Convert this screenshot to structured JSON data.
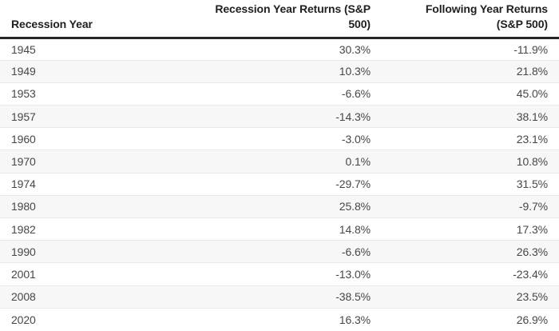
{
  "table": {
    "header": {
      "col_year": "Recession Year",
      "col_recession_line1": "Recession Year Returns (S&P",
      "col_recession_line2": "500)",
      "col_following_line1": "Following Year Returns",
      "col_following_line2": "(S&P 500)"
    },
    "rows": [
      {
        "year": "1945",
        "recession_year_return": "30.3%",
        "following_year_return": "-11.9%"
      },
      {
        "year": "1949",
        "recession_year_return": "10.3%",
        "following_year_return": "21.8%"
      },
      {
        "year": "1953",
        "recession_year_return": "-6.6%",
        "following_year_return": "45.0%"
      },
      {
        "year": "1957",
        "recession_year_return": "-14.3%",
        "following_year_return": "38.1%"
      },
      {
        "year": "1960",
        "recession_year_return": "-3.0%",
        "following_year_return": "23.1%"
      },
      {
        "year": "1970",
        "recession_year_return": "0.1%",
        "following_year_return": "10.8%"
      },
      {
        "year": "1974",
        "recession_year_return": "-29.7%",
        "following_year_return": "31.5%"
      },
      {
        "year": "1980",
        "recession_year_return": "25.8%",
        "following_year_return": "-9.7%"
      },
      {
        "year": "1982",
        "recession_year_return": "14.8%",
        "following_year_return": "17.3%"
      },
      {
        "year": "1990",
        "recession_year_return": "-6.6%",
        "following_year_return": "26.3%"
      },
      {
        "year": "2001",
        "recession_year_return": "-13.0%",
        "following_year_return": "-23.4%"
      },
      {
        "year": "2008",
        "recession_year_return": "-38.5%",
        "following_year_return": "23.5%"
      },
      {
        "year": "2020",
        "recession_year_return": "16.3%",
        "following_year_return": "26.9%"
      }
    ]
  },
  "colors": {
    "header_text": "#1f1f1f",
    "body_text": "#474747",
    "stripe_bg": "#f7f7f7",
    "row_border": "#e9e9e9",
    "header_border": "#262626"
  },
  "chart_data": {
    "type": "table",
    "columns": [
      "Recession Year",
      "Recession Year Returns (S&P 500)",
      "Following Year Returns (S&P 500)"
    ],
    "years": [
      1945,
      1949,
      1953,
      1957,
      1960,
      1970,
      1974,
      1980,
      1982,
      1990,
      2001,
      2008,
      2020
    ],
    "recession_year_returns_pct": [
      30.3,
      10.3,
      -6.6,
      -14.3,
      -3.0,
      0.1,
      -29.7,
      25.8,
      14.8,
      -6.6,
      -13.0,
      -38.5,
      16.3
    ],
    "following_year_returns_pct": [
      -11.9,
      21.8,
      45.0,
      38.1,
      23.1,
      10.8,
      31.5,
      -9.7,
      17.3,
      26.3,
      -23.4,
      23.5,
      26.9
    ],
    "layout": {
      "zebra_striping": true,
      "header_rule": "thick dark line",
      "value_alignment": "right"
    }
  }
}
